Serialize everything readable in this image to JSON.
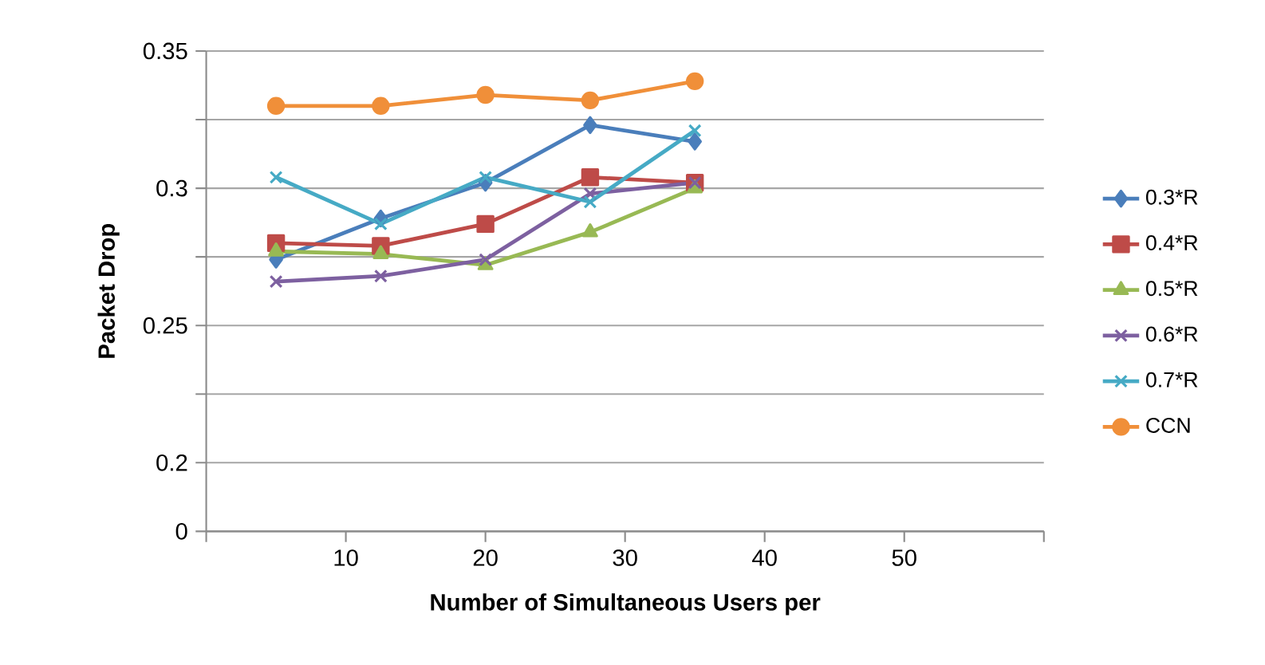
{
  "chart_data": {
    "type": "line",
    "xlabel": "Number of Simultaneous Users per",
    "ylabel": "Packet Drop",
    "x": [
      5,
      12.5,
      20,
      27.5,
      35
    ],
    "series": [
      {
        "name": "0.3*R",
        "color": "#4a7ebb",
        "marker": "diamond",
        "values": [
          0.274,
          0.289,
          0.302,
          0.323,
          0.317
        ]
      },
      {
        "name": "0.4*R",
        "color": "#be4b48",
        "marker": "square",
        "values": [
          0.28,
          0.279,
          0.287,
          0.304,
          0.302
        ]
      },
      {
        "name": "0.5*R",
        "color": "#98b954",
        "marker": "triangle",
        "values": [
          0.277,
          0.276,
          0.272,
          0.284,
          0.3
        ]
      },
      {
        "name": "0.6*R",
        "color": "#7d60a0",
        "marker": "cross",
        "values": [
          0.266,
          0.268,
          0.274,
          0.298,
          0.302
        ]
      },
      {
        "name": "0.7*R",
        "color": "#46aac5",
        "marker": "cross",
        "values": [
          0.304,
          0.287,
          0.304,
          0.295,
          0.321
        ]
      },
      {
        "name": "CCN",
        "color": "#f08f39",
        "marker": "circle",
        "values": [
          0.33,
          0.33,
          0.334,
          0.332,
          0.339
        ]
      }
    ],
    "xlim": [
      0,
      60
    ],
    "xticks": [
      {
        "value": 0,
        "label": null
      },
      10,
      20,
      30,
      40,
      50,
      {
        "value": 60,
        "label": null
      }
    ],
    "ylim": [
      0.175,
      0.35
    ],
    "yticks": [
      {
        "value": 0.175,
        "label": "0"
      },
      0.2,
      {
        "value": 0.225,
        "label": null
      },
      0.25,
      {
        "value": 0.275,
        "label": null
      },
      0.3,
      {
        "value": 0.325,
        "label": null
      },
      0.35
    ],
    "grid": "y",
    "legend": "right",
    "line_style": "solid"
  }
}
